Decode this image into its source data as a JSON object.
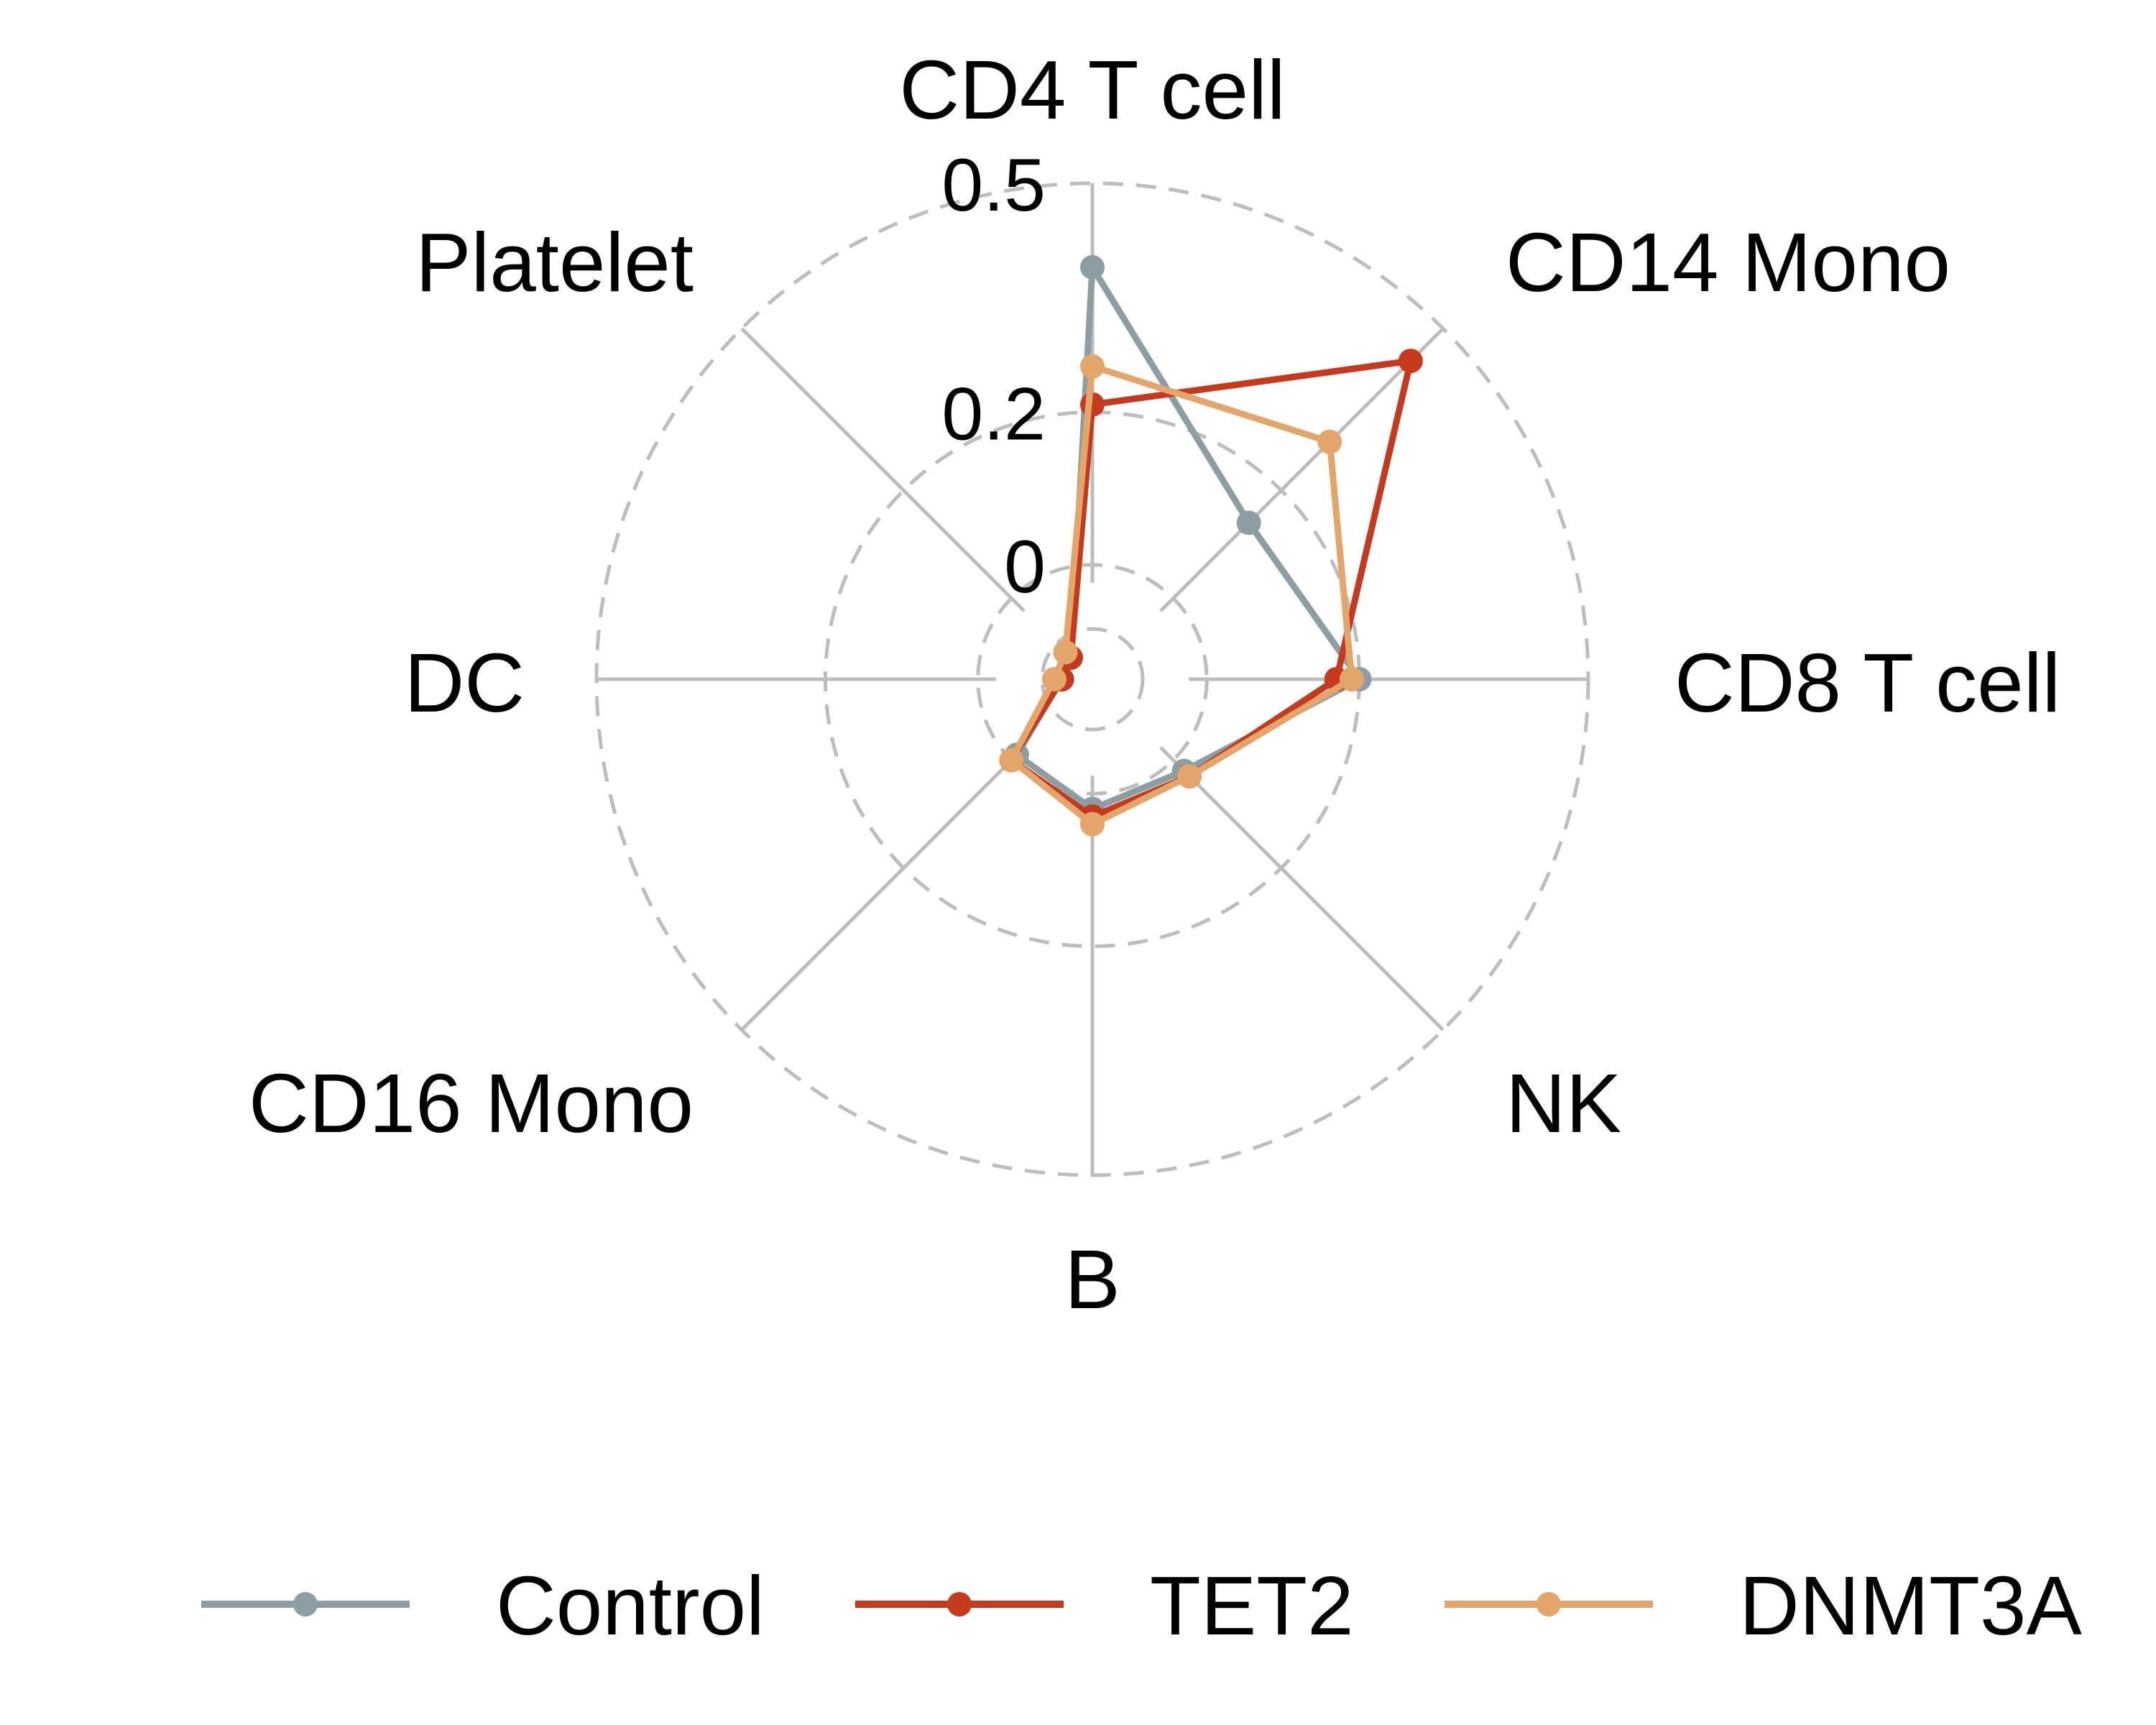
{
  "chart_data": {
    "type": "radar",
    "axes": [
      "CD4 T cell",
      "CD14 Mono",
      "CD8 T cell",
      "NK",
      "B",
      "CD16 Mono",
      "DC",
      "Platelet"
    ],
    "rlim": [
      -0.15,
      0.5
    ],
    "ticks": [
      0,
      0.2,
      0.5
    ],
    "tick_labels": [
      "0",
      "0.2",
      "0.5"
    ],
    "grid": "dashed circles",
    "legend_position": "bottom",
    "series": [
      {
        "name": "Control",
        "color": "#8c9ea4",
        "values": [
          0.39,
          0.14,
          0.2,
          0.02,
          0.02,
          -0.01,
          -0.11,
          -0.11
        ]
      },
      {
        "name": "TET2",
        "color": "#c53a1d",
        "values": [
          0.21,
          0.44,
          0.17,
          0.03,
          0.03,
          0.0,
          -0.11,
          -0.11
        ]
      },
      {
        "name": "DNMT3A",
        "color": "#e3a66a",
        "values": [
          0.26,
          0.29,
          0.19,
          0.03,
          0.04,
          0.0,
          -0.1,
          -0.1
        ]
      }
    ]
  }
}
